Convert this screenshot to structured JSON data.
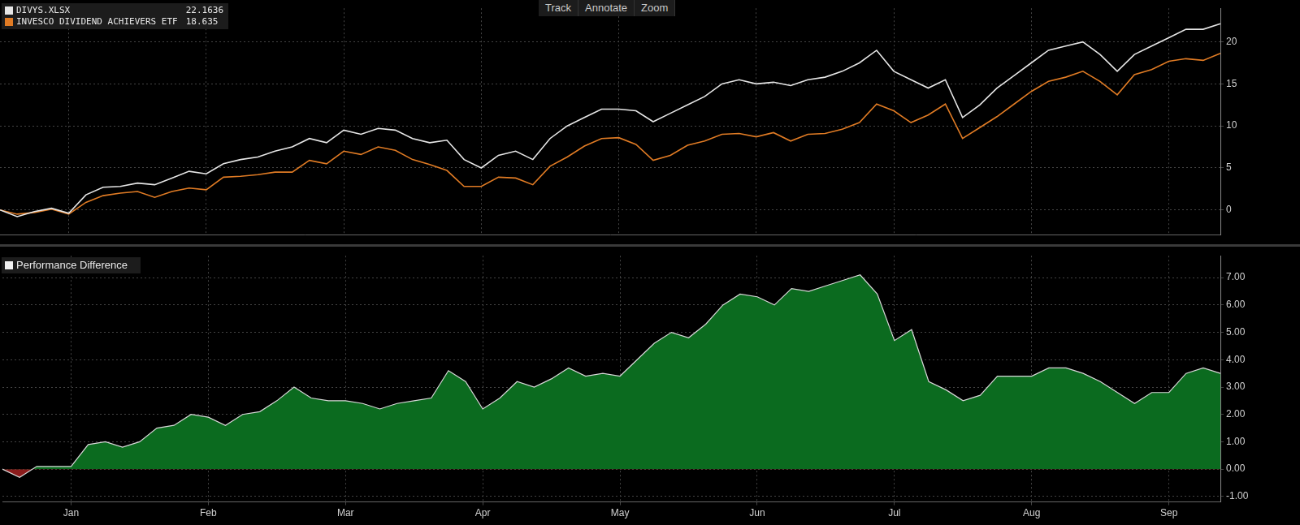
{
  "toolbar": [
    "Track",
    "Annotate",
    "Zoom"
  ],
  "chart_data": [
    {
      "type": "line",
      "categories": [
        null,
        null,
        null,
        null,
        "Jan",
        null,
        null,
        null,
        null,
        null,
        null,
        null,
        "Feb",
        null,
        null,
        null,
        null,
        null,
        null,
        null,
        "Mar",
        null,
        null,
        null,
        null,
        null,
        null,
        null,
        "Apr",
        null,
        null,
        null,
        null,
        null,
        null,
        null,
        "May",
        null,
        null,
        null,
        null,
        null,
        null,
        null,
        "Jun",
        null,
        null,
        null,
        null,
        null,
        null,
        null,
        "Jul",
        null,
        null,
        null,
        null,
        null,
        null,
        null,
        "Aug",
        null,
        null,
        null,
        null,
        null,
        null,
        null,
        "Sep",
        null,
        null,
        null
      ],
      "series": [
        {
          "name": "DIVYS.XLSX",
          "color": "#e6e6e6",
          "values": [
            0,
            -0.8,
            -0.2,
            0.2,
            -0.4,
            1.8,
            2.7,
            2.8,
            3.2,
            3.0,
            3.8,
            4.6,
            4.3,
            5.5,
            6.0,
            6.3,
            7.0,
            7.5,
            8.5,
            8.0,
            9.5,
            9.0,
            9.7,
            9.5,
            8.5,
            8.0,
            8.3,
            6.0,
            5.0,
            6.5,
            7.0,
            6.0,
            8.5,
            10.0,
            11.0,
            12.0,
            12.0,
            11.8,
            10.5,
            11.5,
            12.5,
            13.5,
            15.0,
            15.5,
            15.0,
            15.2,
            14.8,
            15.5,
            15.8,
            16.5,
            17.5,
            19.0,
            16.5,
            15.5,
            14.5,
            15.5,
            11.0,
            12.5,
            14.5,
            16.0,
            17.5,
            19.0,
            19.5,
            20.0,
            18.5,
            16.5,
            18.5,
            19.5,
            20.5,
            21.5,
            21.5,
            22.1636
          ]
        },
        {
          "name": "INVESCO DIVIDEND ACHIEVERS ETF",
          "color": "#e07b24",
          "values": [
            0,
            -0.5,
            -0.3,
            0.1,
            -0.5,
            0.9,
            1.7,
            2.0,
            2.2,
            1.5,
            2.2,
            2.6,
            2.4,
            3.9,
            4.0,
            4.2,
            4.5,
            4.5,
            5.9,
            5.5,
            7.0,
            6.6,
            7.5,
            7.1,
            6.0,
            5.4,
            4.7,
            2.8,
            2.8,
            3.9,
            3.8,
            3.0,
            5.2,
            6.3,
            7.6,
            8.5,
            8.6,
            7.8,
            5.9,
            6.5,
            7.7,
            8.2,
            9.0,
            9.1,
            8.7,
            9.2,
            8.2,
            9.0,
            9.1,
            9.6,
            10.4,
            12.6,
            11.8,
            10.4,
            11.3,
            12.6,
            8.5,
            9.8,
            11.1,
            12.6,
            14.1,
            15.3,
            15.8,
            16.5,
            15.3,
            13.7,
            16.1,
            16.7,
            17.7,
            18.0,
            17.8,
            18.635
          ]
        }
      ],
      "ylim": [
        -3,
        24
      ],
      "yticks": [
        0,
        5,
        10,
        15,
        20
      ],
      "grid": true,
      "legend": "top-left",
      "tick_labels": "y"
    },
    {
      "type": "area",
      "categories": [
        null,
        null,
        null,
        null,
        "Jan",
        null,
        null,
        null,
        null,
        null,
        null,
        null,
        "Feb",
        null,
        null,
        null,
        null,
        null,
        null,
        null,
        "Mar",
        null,
        null,
        null,
        null,
        null,
        null,
        null,
        "Apr",
        null,
        null,
        null,
        null,
        null,
        null,
        null,
        "May",
        null,
        null,
        null,
        null,
        null,
        null,
        null,
        "Jun",
        null,
        null,
        null,
        null,
        null,
        null,
        null,
        "Jul",
        null,
        null,
        null,
        null,
        null,
        null,
        null,
        "Aug",
        null,
        null,
        null,
        null,
        null,
        null,
        null,
        "Sep",
        null,
        null,
        null
      ],
      "series": [
        {
          "name": "Performance Difference",
          "color": "#0b6b1f",
          "values": [
            0,
            -0.3,
            0.1,
            0.1,
            0.1,
            0.9,
            1.0,
            0.8,
            1.0,
            1.5,
            1.6,
            2.0,
            1.9,
            1.6,
            2.0,
            2.1,
            2.5,
            3.0,
            2.6,
            2.5,
            2.5,
            2.4,
            2.2,
            2.4,
            2.5,
            2.6,
            3.6,
            3.2,
            2.2,
            2.6,
            3.2,
            3.0,
            3.3,
            3.7,
            3.4,
            3.5,
            3.4,
            4.0,
            4.6,
            5.0,
            4.8,
            5.3,
            6.0,
            6.4,
            6.3,
            6.0,
            6.6,
            6.5,
            6.7,
            6.9,
            7.1,
            6.4,
            4.7,
            5.1,
            3.2,
            2.9,
            2.5,
            2.7,
            3.4,
            3.4,
            3.4,
            3.7,
            3.7,
            3.5,
            3.2,
            2.8,
            2.4,
            2.8,
            2.8,
            3.5,
            3.7,
            3.5
          ]
        }
      ],
      "ylim": [
        -1.2,
        7.8
      ],
      "yticks": [
        {
          "value": -1,
          "label": "-1.00"
        },
        {
          "value": 0,
          "label": "0.00"
        },
        {
          "value": 1,
          "label": "1.00"
        },
        {
          "value": 2,
          "label": "2.00"
        },
        {
          "value": 3,
          "label": "3.00"
        },
        {
          "value": 4,
          "label": "4.00"
        },
        {
          "value": 5,
          "label": "5.00"
        },
        {
          "value": 6,
          "label": "6.00"
        },
        {
          "value": 7,
          "label": "7.00"
        }
      ],
      "grid": true,
      "legend": "top-left"
    }
  ]
}
